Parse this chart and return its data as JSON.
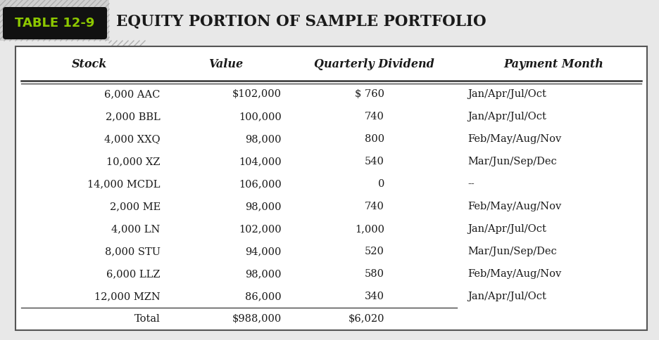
{
  "title": "EQUITY PORTION OF SAMPLE PORTFOLIO",
  "table_label": "TABLE 12-9",
  "headers": [
    "Stock",
    "Value",
    "Quarterly Dividend",
    "Payment Month"
  ],
  "rows": [
    [
      "6,000 AAC",
      "$102,000",
      "$ 760",
      "Jan/Apr/Jul/Oct"
    ],
    [
      "2,000 BBL",
      "100,000",
      "740",
      "Jan/Apr/Jul/Oct"
    ],
    [
      "4,000 XXQ",
      "98,000",
      "800",
      "Feb/May/Aug/Nov"
    ],
    [
      "10,000 XZ",
      "104,000",
      "540",
      "Mar/Jun/Sep/Dec"
    ],
    [
      "14,000 MCDL",
      "106,000",
      "0",
      "--"
    ],
    [
      "2,000 ME",
      "98,000",
      "740",
      "Feb/May/Aug/Nov"
    ],
    [
      "4,000 LN",
      "102,000",
      "1,000",
      "Jan/Apr/Jul/Oct"
    ],
    [
      "8,000 STU",
      "94,000",
      "520",
      "Mar/Jun/Sep/Dec"
    ],
    [
      "6,000 LLZ",
      "98,000",
      "580",
      "Feb/May/Aug/Nov"
    ],
    [
      "12,000 MZN",
      "86,000",
      "340",
      "Jan/Apr/Jul/Oct"
    ]
  ],
  "total_row": [
    "Total",
    "$988,000",
    "$6,020",
    ""
  ],
  "outer_bg": "#e8e8e8",
  "table_bg": "#ffffff",
  "badge_bg": "#111111",
  "badge_text_color": "#8dc800",
  "title_color": "#1a1a1a",
  "hatch_bg": "#d0d0d0",
  "hatch_color": "#b0b0b0",
  "text_color": "#1a1a1a",
  "fig_width": 9.37,
  "fig_height": 4.84,
  "dpi": 100
}
